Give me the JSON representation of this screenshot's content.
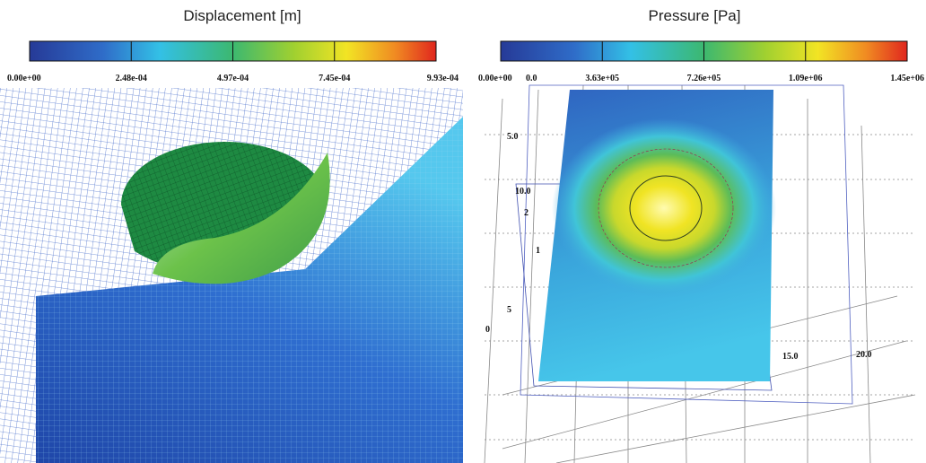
{
  "panels": [
    {
      "title": "Displacement [m]",
      "colorbar_ticks": [
        "0.00e+00",
        "2.48e-04",
        "4.97e-04",
        "7.45e-04",
        "9.93e-04"
      ]
    },
    {
      "title": "Pressure [Pa]",
      "colorbar_ticks": [
        "0.00e+00",
        "3.63e+05",
        "7.26e+05",
        "1.09e+06",
        "1.45e+06"
      ],
      "axis_labels": [
        "0.0",
        "5.0",
        "10.0",
        "2",
        "1",
        "5",
        "0",
        "15.0",
        "20.0"
      ]
    }
  ]
}
